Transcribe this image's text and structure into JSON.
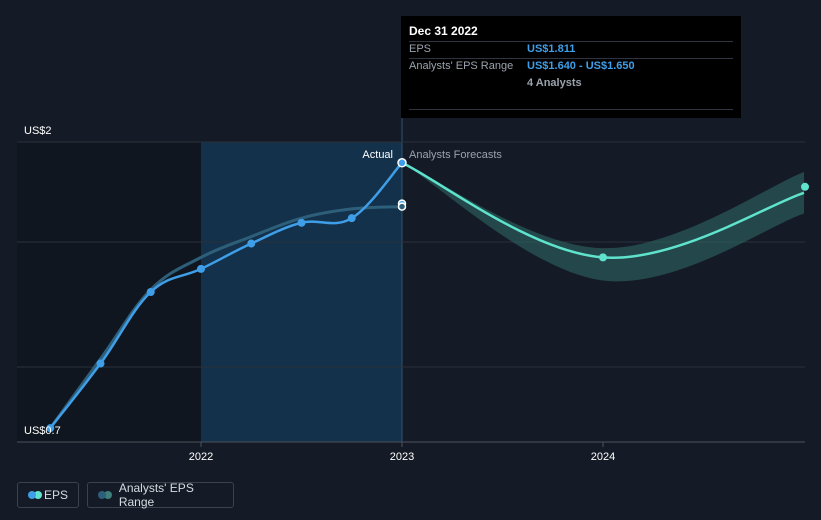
{
  "chart_data": {
    "type": "line",
    "x_ticks": [
      "2022",
      "2023",
      "2024"
    ],
    "y_ticks": [
      "US$2",
      "US$0.7"
    ],
    "ylim": [
      0.7,
      2.0
    ],
    "section_labels": {
      "actual": "Actual",
      "forecast": "Analysts Forecasts"
    },
    "series": [
      {
        "name": "EPS",
        "color": "#3f9ee8",
        "points": [
          {
            "x": 2021.25,
            "y": 0.76
          },
          {
            "x": 2021.5,
            "y": 1.04
          },
          {
            "x": 2021.75,
            "y": 1.35
          },
          {
            "x": 2022.0,
            "y": 1.45
          },
          {
            "x": 2022.25,
            "y": 1.56
          },
          {
            "x": 2022.5,
            "y": 1.65
          },
          {
            "x": 2022.75,
            "y": 1.67
          },
          {
            "x": 2023.0,
            "y": 1.91
          }
        ]
      },
      {
        "name": "Analysts' EPS Range",
        "color": "#2e5f7a",
        "points": [
          {
            "x": 2021.25,
            "y": 0.76
          },
          {
            "x": 2021.5,
            "y": 1.06
          },
          {
            "x": 2021.75,
            "y": 1.36
          },
          {
            "x": 2022.0,
            "y": 1.5
          },
          {
            "x": 2022.25,
            "y": 1.59
          },
          {
            "x": 2022.5,
            "y": 1.67
          },
          {
            "x": 2022.75,
            "y": 1.71
          },
          {
            "x": 2023.0,
            "y": 1.72
          }
        ]
      },
      {
        "name": "EPS forecast",
        "color": "#5fe3cc",
        "points": [
          {
            "x": 2023.0,
            "y": 1.91
          },
          {
            "x": 2024.0,
            "y": 1.5
          },
          {
            "x": 2025.0,
            "y": 1.78
          }
        ]
      }
    ],
    "forecast_range": {
      "x": [
        2023.0,
        2024.0,
        2025.0
      ],
      "low": [
        1.91,
        1.4,
        1.69
      ],
      "high": [
        1.91,
        1.54,
        1.87
      ]
    },
    "tooltip": {
      "date": "Dec 31 2022",
      "rows": [
        {
          "label": "EPS",
          "value": "US$1.811"
        },
        {
          "label": "Analysts' EPS Range",
          "value": "US$1.640 - US$1.650"
        }
      ],
      "subtext": "4 Analysts"
    },
    "legend": [
      {
        "label": "EPS",
        "colors": [
          "#3f9ee8",
          "#5fe3cc"
        ]
      },
      {
        "label": "Analysts' EPS Range",
        "colors": [
          "#2e5f7a",
          "#3f7f7a"
        ]
      }
    ]
  }
}
